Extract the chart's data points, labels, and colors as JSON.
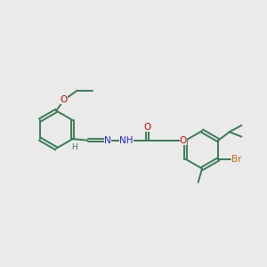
{
  "background_color": "#eaeaea",
  "bond_color": "#3a7a56",
  "bond_width": 1.4,
  "atoms": {
    "O": "#cc0000",
    "N": "#2222cc",
    "Br": "#cc6600",
    "C": "#3a7a56"
  },
  "fontsize": 7.5
}
